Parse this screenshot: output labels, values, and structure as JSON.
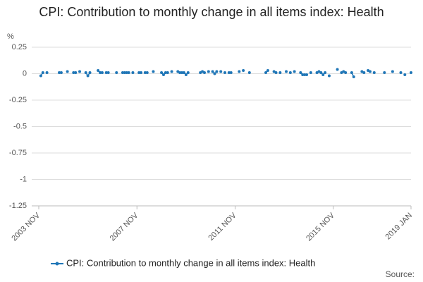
{
  "chart_data": {
    "type": "line",
    "title": "CPI: Contribution to monthly change in all items index: Health",
    "y_label": "%",
    "source": "Source:",
    "categories": [
      "2003 NOV",
      null,
      null,
      null,
      null,
      null,
      null,
      null,
      null,
      null,
      null,
      null,
      null,
      null,
      null,
      null,
      null,
      null,
      null,
      null,
      null,
      null,
      null,
      null,
      null,
      null,
      null,
      null,
      null,
      null,
      null,
      null,
      null,
      null,
      null,
      null,
      null,
      null,
      null,
      null,
      null,
      null,
      null,
      null,
      null,
      null,
      null,
      null,
      "2007 NOV",
      null,
      null,
      null,
      null,
      null,
      null,
      null,
      null,
      null,
      null,
      null,
      null,
      null,
      null,
      null,
      null,
      null,
      null,
      null,
      null,
      null,
      null,
      null,
      null,
      null,
      null,
      null,
      null,
      null,
      null,
      null,
      null,
      null,
      null,
      null,
      null,
      null,
      null,
      null,
      null,
      null,
      null,
      null,
      null,
      null,
      null,
      null,
      "2011 NOV",
      null,
      null,
      null,
      null,
      null,
      null,
      null,
      null,
      null,
      null,
      null,
      null,
      null,
      null,
      null,
      null,
      null,
      null,
      null,
      null,
      null,
      null,
      null,
      null,
      null,
      null,
      null,
      null,
      null,
      null,
      null,
      null,
      null,
      null,
      null,
      null,
      null,
      null,
      null,
      null,
      null,
      null,
      null,
      null,
      null,
      null,
      null,
      "2015 NOV",
      null,
      null,
      null,
      null,
      null,
      null,
      null,
      null,
      null,
      null,
      null,
      null,
      null,
      null,
      null,
      null,
      null,
      null,
      null,
      null,
      null,
      null,
      null,
      null,
      null,
      null,
      null,
      null,
      null,
      null,
      null,
      null,
      null,
      null,
      null,
      null,
      null,
      "2019 JAN"
    ],
    "series": [
      {
        "name": "CPI: Contribution to monthly change in all items index: Health",
        "color": "#1f76b7",
        "values": [
          null,
          -0.02,
          0.01,
          null,
          0.01,
          null,
          null,
          null,
          null,
          null,
          0.01,
          0.01,
          null,
          null,
          0.02,
          null,
          null,
          0.01,
          0.01,
          null,
          0.02,
          null,
          null,
          0.01,
          -0.02,
          0.01,
          null,
          null,
          null,
          0.03,
          0.01,
          0.01,
          null,
          0.01,
          0.01,
          null,
          null,
          null,
          0.01,
          null,
          null,
          0.01,
          0.01,
          0.01,
          0.01,
          null,
          0.01,
          null,
          null,
          0.01,
          0.01,
          null,
          0.01,
          0.01,
          null,
          null,
          0.02,
          null,
          null,
          null,
          0.01,
          -0.01,
          0.01,
          0.01,
          null,
          0.02,
          null,
          null,
          0.02,
          0.01,
          0.01,
          0.01,
          -0.01,
          0.01,
          null,
          null,
          null,
          null,
          null,
          0.01,
          0.02,
          0.01,
          null,
          0.02,
          null,
          0.02,
          0,
          0.02,
          null,
          0.02,
          null,
          0.01,
          null,
          0.01,
          0.01,
          null,
          null,
          null,
          0.02,
          null,
          0.03,
          null,
          null,
          0.01,
          null,
          null,
          null,
          null,
          null,
          null,
          null,
          0.01,
          0.03,
          null,
          null,
          0.02,
          0.01,
          null,
          0.01,
          null,
          null,
          0.02,
          null,
          0.01,
          null,
          0.02,
          null,
          null,
          0.01,
          -0.01,
          -0.01,
          -0.01,
          null,
          0.01,
          null,
          null,
          0.01,
          0.02,
          0.01,
          -0.01,
          0.01,
          null,
          -0.02,
          null,
          null,
          null,
          0.04,
          null,
          0.01,
          0.02,
          0.01,
          null,
          null,
          0.01,
          -0.03,
          null,
          null,
          null,
          0.02,
          0.01,
          null,
          0.03,
          0.02,
          null,
          0.01,
          null,
          null,
          null,
          null,
          0.01,
          null,
          null,
          null,
          0.02,
          null,
          null,
          null,
          0.01,
          null,
          -0.01,
          null,
          null,
          0.01
        ]
      }
    ],
    "ylim": [
      -1.25,
      0.25
    ],
    "yticks": [
      0.25,
      0,
      -0.25,
      -0.5,
      -0.75,
      -1,
      -1.25
    ],
    "grid": true
  }
}
